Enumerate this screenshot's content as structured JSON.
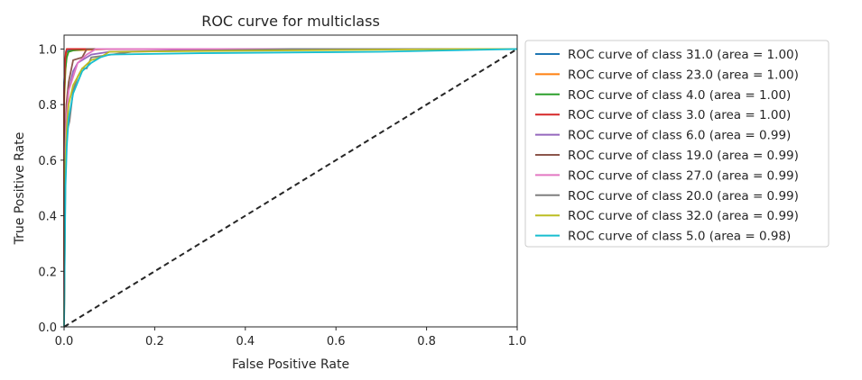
{
  "chart_data": {
    "type": "line",
    "title": "ROC curve for multiclass",
    "xlabel": "False Positive Rate",
    "ylabel": "True Positive Rate",
    "xlim": [
      0.0,
      1.0
    ],
    "ylim": [
      0.0,
      1.05
    ],
    "x_ticks": [
      0.0,
      0.2,
      0.4,
      0.6,
      0.8,
      1.0
    ],
    "x_tick_labels": [
      "0.0",
      "0.2",
      "0.4",
      "0.6",
      "0.8",
      "1.0"
    ],
    "y_ticks": [
      0.0,
      0.2,
      0.4,
      0.6,
      0.8,
      1.0
    ],
    "y_tick_labels": [
      "0.0",
      "0.2",
      "0.4",
      "0.6",
      "0.8",
      "1.0"
    ],
    "grid": false,
    "legend_position": "outside-right",
    "reference_line": {
      "x": [
        0,
        1
      ],
      "y": [
        0,
        1
      ],
      "style": "dashed",
      "color": "#262626"
    },
    "series": [
      {
        "name": "ROC curve of class 31.0 (area = 1.00)",
        "color": "#1f77b4",
        "x": [
          0,
          0,
          0.003,
          0.006,
          0.01,
          0.02,
          0.05,
          0.2,
          0.5,
          0.8,
          1.0
        ],
        "y": [
          0,
          0.88,
          0.95,
          0.99,
          0.995,
          1.0,
          1.0,
          1.0,
          1.0,
          1.0,
          1.0
        ]
      },
      {
        "name": "ROC curve of class 23.0 (area = 1.00)",
        "color": "#ff7f0e",
        "x": [
          0,
          0,
          0.003,
          0.006,
          0.01,
          0.02,
          0.1,
          0.5,
          0.9,
          1.0
        ],
        "y": [
          0,
          0.8,
          0.92,
          0.98,
          0.99,
          0.995,
          1.0,
          1.0,
          1.0,
          1.0
        ]
      },
      {
        "name": "ROC curve of class 4.0 (area = 1.00)",
        "color": "#2ca02c",
        "x": [
          0,
          0,
          0.003,
          0.006,
          0.01,
          0.02,
          0.05,
          0.5,
          1.0
        ],
        "y": [
          0,
          0.83,
          0.93,
          0.97,
          0.99,
          0.995,
          1.0,
          1.0,
          1.0
        ]
      },
      {
        "name": "ROC curve of class 3.0 (area = 1.00)",
        "color": "#d62728",
        "x": [
          0,
          0,
          0.002,
          0.004,
          0.006,
          0.01,
          0.5,
          1.0
        ],
        "y": [
          0,
          0.85,
          0.95,
          0.99,
          1.0,
          1.0,
          1.0,
          1.0
        ]
      },
      {
        "name": "ROC curve of class 6.0 (area = 0.99)",
        "color": "#9467bd",
        "x": [
          0,
          0.002,
          0.005,
          0.01,
          0.02,
          0.03,
          0.04,
          0.06,
          0.1,
          0.5,
          1.0
        ],
        "y": [
          0,
          0.6,
          0.75,
          0.85,
          0.92,
          0.95,
          0.96,
          0.98,
          0.99,
          1.0,
          1.0
        ]
      },
      {
        "name": "ROC curve of class 19.0 (area = 0.99)",
        "color": "#8c564b",
        "x": [
          0,
          0.002,
          0.005,
          0.01,
          0.015,
          0.02,
          0.04,
          0.05,
          0.5,
          1.0
        ],
        "y": [
          0,
          0.65,
          0.8,
          0.88,
          0.92,
          0.96,
          0.97,
          1.0,
          1.0,
          1.0
        ]
      },
      {
        "name": "ROC curve of class 27.0 (area = 0.99)",
        "color": "#e377c2",
        "x": [
          0,
          0.002,
          0.005,
          0.01,
          0.02,
          0.03,
          0.05,
          0.07,
          0.5,
          1.0
        ],
        "y": [
          0,
          0.6,
          0.75,
          0.85,
          0.9,
          0.95,
          0.98,
          1.0,
          1.0,
          1.0
        ]
      },
      {
        "name": "ROC curve of class 20.0 (area = 0.99)",
        "color": "#7f7f7f",
        "x": [
          0,
          0.003,
          0.006,
          0.012,
          0.02,
          0.03,
          0.04,
          0.05,
          0.055,
          0.06,
          0.15,
          0.5,
          1.0
        ],
        "y": [
          0,
          0.55,
          0.7,
          0.74,
          0.85,
          0.9,
          0.93,
          0.93,
          0.95,
          0.97,
          0.99,
          1.0,
          1.0
        ]
      },
      {
        "name": "ROC curve of class 32.0 (area = 0.99)",
        "color": "#bcbd22",
        "x": [
          0,
          0.003,
          0.006,
          0.01,
          0.02,
          0.04,
          0.06,
          0.08,
          0.1,
          0.5,
          0.9,
          1.0
        ],
        "y": [
          0,
          0.6,
          0.72,
          0.8,
          0.87,
          0.93,
          0.96,
          0.97,
          0.99,
          0.995,
          1.0,
          1.0
        ]
      },
      {
        "name": "ROC curve of class 5.0 (area = 0.98)",
        "color": "#17becf",
        "x": [
          0,
          0.003,
          0.006,
          0.01,
          0.02,
          0.03,
          0.04,
          0.06,
          0.08,
          0.1,
          0.3,
          0.7,
          1.0
        ],
        "y": [
          0,
          0.5,
          0.65,
          0.75,
          0.84,
          0.88,
          0.92,
          0.95,
          0.97,
          0.98,
          0.985,
          0.99,
          1.0
        ]
      }
    ]
  }
}
